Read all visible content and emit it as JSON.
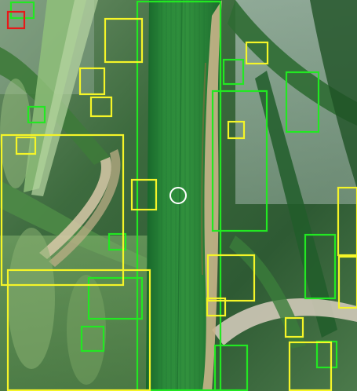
{
  "image": {
    "subject": "rice-leaf-closeup",
    "palette": {
      "leaf_dark": "#1f6b2c",
      "leaf_mid": "#2f8a3a",
      "leaf_light": "#4faa52",
      "lesion_tan": "#c9b48a",
      "sky": "#c7d3d6",
      "background_green": "#5d8b5a"
    }
  },
  "annotations": {
    "colors": {
      "green": "#22e822",
      "yellow": "#f5f528",
      "red": "#e81818",
      "cursor": "#ffffff"
    },
    "counts": {
      "green": 16,
      "yellow": 20,
      "red": 1
    }
  }
}
